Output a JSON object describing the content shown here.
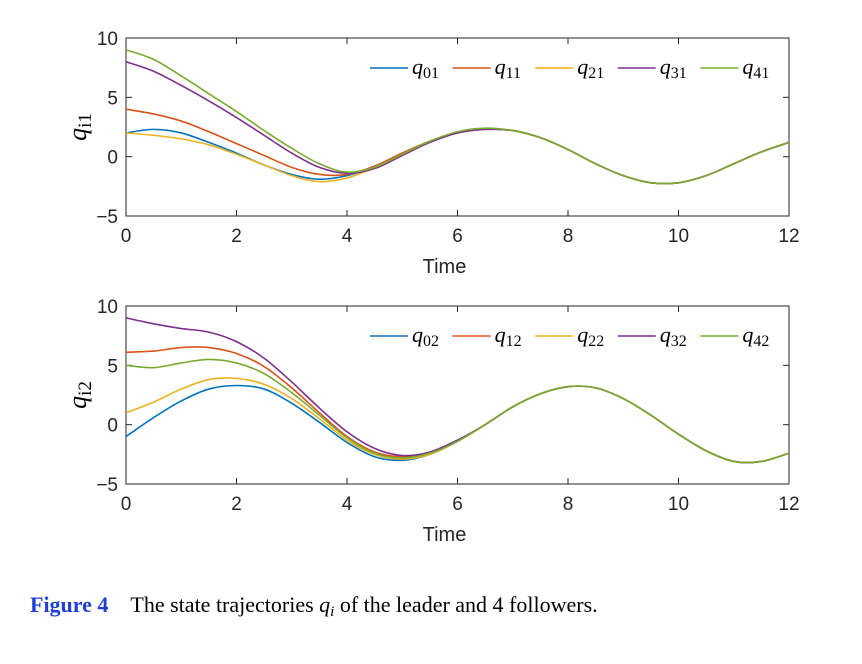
{
  "chart_data": [
    {
      "type": "line",
      "xlabel": "Time",
      "ylabel": {
        "base": "q",
        "sub": "i1"
      },
      "xlim": [
        0,
        12
      ],
      "ylim": [
        -5,
        10
      ],
      "xticks": [
        "0",
        "2",
        "4",
        "6",
        "8",
        "10",
        "12"
      ],
      "yticks": [
        "−5",
        "0",
        "5",
        "10"
      ],
      "legend_position": "top-right",
      "x": [
        0,
        0.5,
        1,
        1.5,
        2,
        2.5,
        3,
        3.5,
        4,
        4.5,
        5,
        5.5,
        6,
        6.5,
        7,
        7.5,
        8,
        8.5,
        9,
        9.5,
        10,
        10.5,
        11,
        11.5,
        12
      ],
      "series": [
        {
          "name": "q01",
          "label_base": "q",
          "label_sub": "01",
          "color": "#0072BD",
          "values": [
            2.0,
            2.3,
            2.0,
            1.2,
            0.3,
            -0.7,
            -1.5,
            -1.9,
            -1.6,
            -0.8,
            0.3,
            1.3,
            2.0,
            2.3,
            2.2,
            1.6,
            0.6,
            -0.6,
            -1.6,
            -2.2,
            -2.2,
            -1.6,
            -0.6,
            0.4,
            1.2
          ]
        },
        {
          "name": "q11",
          "label_base": "q",
          "label_sub": "11",
          "color": "#D95319",
          "values": [
            4.0,
            3.6,
            3.0,
            2.1,
            1.1,
            0.1,
            -0.9,
            -1.5,
            -1.5,
            -0.8,
            0.3,
            1.3,
            2.0,
            2.3,
            2.2,
            1.6,
            0.6,
            -0.6,
            -1.6,
            -2.2,
            -2.2,
            -1.6,
            -0.6,
            0.4,
            1.2
          ]
        },
        {
          "name": "q21",
          "label_base": "q",
          "label_sub": "21",
          "color": "#EDB120",
          "values": [
            2.0,
            1.8,
            1.5,
            1.0,
            0.2,
            -0.7,
            -1.6,
            -2.1,
            -1.8,
            -0.9,
            0.2,
            1.3,
            2.0,
            2.3,
            2.2,
            1.6,
            0.6,
            -0.6,
            -1.6,
            -2.2,
            -2.2,
            -1.6,
            -0.6,
            0.4,
            1.2
          ]
        },
        {
          "name": "q31",
          "label_base": "q",
          "label_sub": "31",
          "color": "#7E2F8E",
          "values": [
            8.0,
            7.2,
            6.0,
            4.7,
            3.3,
            1.8,
            0.3,
            -0.9,
            -1.4,
            -1.0,
            0.1,
            1.2,
            2.0,
            2.3,
            2.2,
            1.6,
            0.6,
            -0.6,
            -1.6,
            -2.2,
            -2.2,
            -1.6,
            -0.6,
            0.4,
            1.2
          ]
        },
        {
          "name": "q41",
          "label_base": "q",
          "label_sub": "41",
          "color": "#77AC30",
          "values": [
            9.0,
            8.2,
            6.8,
            5.3,
            3.8,
            2.2,
            0.7,
            -0.6,
            -1.3,
            -0.9,
            0.2,
            1.3,
            2.1,
            2.4,
            2.2,
            1.6,
            0.6,
            -0.6,
            -1.6,
            -2.2,
            -2.2,
            -1.6,
            -0.6,
            0.4,
            1.2
          ]
        }
      ]
    },
    {
      "type": "line",
      "xlabel": "Time",
      "ylabel": {
        "base": "q",
        "sub": "i2"
      },
      "xlim": [
        0,
        12
      ],
      "ylim": [
        -5,
        10
      ],
      "xticks": [
        "0",
        "2",
        "4",
        "6",
        "8",
        "10",
        "12"
      ],
      "yticks": [
        "−5",
        "0",
        "5",
        "10"
      ],
      "legend_position": "top-right",
      "x": [
        0,
        0.5,
        1,
        1.5,
        2,
        2.5,
        3,
        3.5,
        4,
        4.5,
        5,
        5.5,
        6,
        6.5,
        7,
        7.5,
        8,
        8.5,
        9,
        9.5,
        10,
        10.5,
        11,
        11.5,
        12
      ],
      "series": [
        {
          "name": "q02",
          "label_base": "q",
          "label_sub": "02",
          "color": "#0072BD",
          "values": [
            -1.0,
            0.6,
            2.0,
            3.0,
            3.3,
            3.0,
            1.8,
            0.2,
            -1.5,
            -2.7,
            -3.0,
            -2.5,
            -1.4,
            0.0,
            1.5,
            2.6,
            3.2,
            3.1,
            2.2,
            0.8,
            -0.8,
            -2.2,
            -3.1,
            -3.1,
            -2.4
          ]
        },
        {
          "name": "q12",
          "label_base": "q",
          "label_sub": "12",
          "color": "#D95319",
          "values": [
            6.1,
            6.2,
            6.5,
            6.5,
            6.0,
            4.9,
            3.1,
            1.0,
            -1.0,
            -2.3,
            -2.7,
            -2.4,
            -1.4,
            0.0,
            1.5,
            2.6,
            3.2,
            3.1,
            2.2,
            0.8,
            -0.8,
            -2.2,
            -3.1,
            -3.1,
            -2.4
          ]
        },
        {
          "name": "q22",
          "label_base": "q",
          "label_sub": "22",
          "color": "#EDB120",
          "values": [
            1.0,
            1.9,
            3.0,
            3.8,
            3.9,
            3.4,
            2.2,
            0.5,
            -1.3,
            -2.5,
            -2.9,
            -2.5,
            -1.4,
            0.0,
            1.5,
            2.6,
            3.2,
            3.1,
            2.2,
            0.8,
            -0.8,
            -2.2,
            -3.1,
            -3.1,
            -2.4
          ]
        },
        {
          "name": "q32",
          "label_base": "q",
          "label_sub": "32",
          "color": "#7E2F8E",
          "values": [
            9.0,
            8.5,
            8.1,
            7.8,
            7.0,
            5.6,
            3.6,
            1.4,
            -0.6,
            -2.0,
            -2.6,
            -2.3,
            -1.3,
            0.0,
            1.5,
            2.6,
            3.2,
            3.1,
            2.2,
            0.8,
            -0.8,
            -2.2,
            -3.1,
            -3.1,
            -2.4
          ]
        },
        {
          "name": "q42",
          "label_base": "q",
          "label_sub": "42",
          "color": "#77AC30",
          "values": [
            5.0,
            4.8,
            5.2,
            5.5,
            5.2,
            4.3,
            2.7,
            0.8,
            -1.1,
            -2.4,
            -2.8,
            -2.4,
            -1.4,
            0.0,
            1.5,
            2.6,
            3.2,
            3.1,
            2.2,
            0.8,
            -0.8,
            -2.2,
            -3.1,
            -3.1,
            -2.4
          ]
        }
      ]
    }
  ],
  "caption": {
    "label": "Figure 4",
    "text_before": "The state trajectories ",
    "var": "q",
    "var_sub": "i",
    "text_after": " of the leader and 4 followers."
  }
}
